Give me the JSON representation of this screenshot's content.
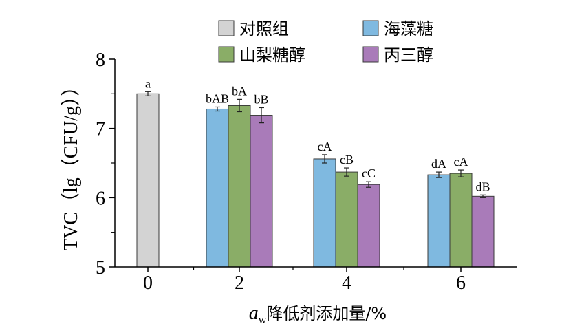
{
  "chart_data": {
    "type": "bar",
    "categories": [
      "0",
      "2",
      "4",
      "6"
    ],
    "series": [
      {
        "name": "对照组",
        "color": "#d3d3d3",
        "values": [
          7.5,
          null,
          null,
          null
        ],
        "errors": [
          0.03,
          null,
          null,
          null
        ],
        "labels": [
          "a",
          null,
          null,
          null
        ]
      },
      {
        "name": "海藻糖",
        "color": "#7fb9e0",
        "values": [
          null,
          7.28,
          6.56,
          6.33
        ],
        "errors": [
          null,
          0.03,
          0.06,
          0.04
        ],
        "labels": [
          null,
          "bAB",
          "cA",
          "dA"
        ]
      },
      {
        "name": "山梨糖醇",
        "color": "#8aad67",
        "values": [
          null,
          7.33,
          6.37,
          6.35
        ],
        "errors": [
          null,
          0.09,
          0.06,
          0.05
        ],
        "labels": [
          null,
          "bA",
          "cB",
          "cA"
        ]
      },
      {
        "name": "丙三醇",
        "color": "#a97bb9",
        "values": [
          null,
          7.19,
          6.19,
          6.02
        ],
        "errors": [
          null,
          0.11,
          0.04,
          0.02
        ],
        "labels": [
          null,
          "bB",
          "cC",
          "dB"
        ]
      }
    ],
    "ylabel": "TVC（lg（CFU/g））",
    "xlabel_italic": "a",
    "xlabel_sub": "w",
    "xlabel_rest": "降低剂添加量/%",
    "ylim": [
      5,
      8
    ],
    "yticks": [
      "5",
      "6",
      "7",
      "8"
    ],
    "legend_position": "top",
    "grid": false
  }
}
